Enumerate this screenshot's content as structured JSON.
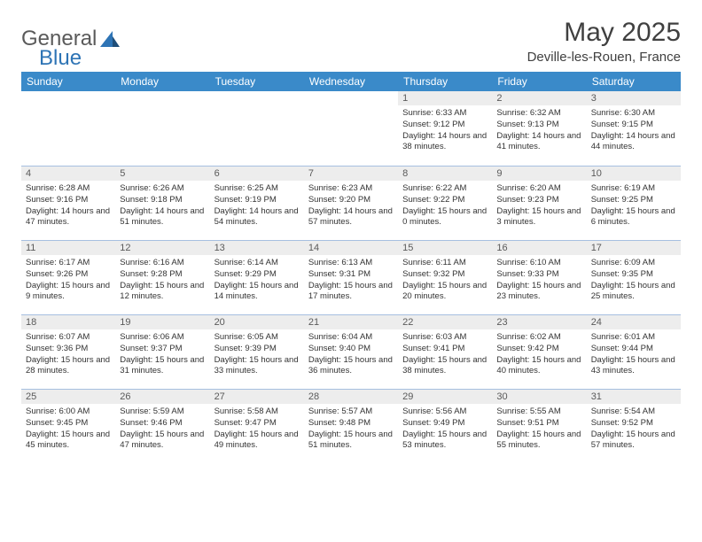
{
  "logo": {
    "general": "General",
    "blue": "Blue"
  },
  "title": "May 2025",
  "location": "Deville-les-Rouen, France",
  "colors": {
    "header_bg": "#3a8ac9",
    "header_text": "#ffffff",
    "daynum_bg": "#ededed",
    "daynum_text": "#5a5a5a",
    "rule": "#a6bfe0",
    "body_text": "#333333",
    "title_text": "#404040"
  },
  "weekdays": [
    "Sunday",
    "Monday",
    "Tuesday",
    "Wednesday",
    "Thursday",
    "Friday",
    "Saturday"
  ],
  "weeks": [
    [
      null,
      null,
      null,
      null,
      {
        "n": "1",
        "sunrise": "6:33 AM",
        "sunset": "9:12 PM",
        "dl": "14 hours and 38 minutes."
      },
      {
        "n": "2",
        "sunrise": "6:32 AM",
        "sunset": "9:13 PM",
        "dl": "14 hours and 41 minutes."
      },
      {
        "n": "3",
        "sunrise": "6:30 AM",
        "sunset": "9:15 PM",
        "dl": "14 hours and 44 minutes."
      }
    ],
    [
      {
        "n": "4",
        "sunrise": "6:28 AM",
        "sunset": "9:16 PM",
        "dl": "14 hours and 47 minutes."
      },
      {
        "n": "5",
        "sunrise": "6:26 AM",
        "sunset": "9:18 PM",
        "dl": "14 hours and 51 minutes."
      },
      {
        "n": "6",
        "sunrise": "6:25 AM",
        "sunset": "9:19 PM",
        "dl": "14 hours and 54 minutes."
      },
      {
        "n": "7",
        "sunrise": "6:23 AM",
        "sunset": "9:20 PM",
        "dl": "14 hours and 57 minutes."
      },
      {
        "n": "8",
        "sunrise": "6:22 AM",
        "sunset": "9:22 PM",
        "dl": "15 hours and 0 minutes."
      },
      {
        "n": "9",
        "sunrise": "6:20 AM",
        "sunset": "9:23 PM",
        "dl": "15 hours and 3 minutes."
      },
      {
        "n": "10",
        "sunrise": "6:19 AM",
        "sunset": "9:25 PM",
        "dl": "15 hours and 6 minutes."
      }
    ],
    [
      {
        "n": "11",
        "sunrise": "6:17 AM",
        "sunset": "9:26 PM",
        "dl": "15 hours and 9 minutes."
      },
      {
        "n": "12",
        "sunrise": "6:16 AM",
        "sunset": "9:28 PM",
        "dl": "15 hours and 12 minutes."
      },
      {
        "n": "13",
        "sunrise": "6:14 AM",
        "sunset": "9:29 PM",
        "dl": "15 hours and 14 minutes."
      },
      {
        "n": "14",
        "sunrise": "6:13 AM",
        "sunset": "9:31 PM",
        "dl": "15 hours and 17 minutes."
      },
      {
        "n": "15",
        "sunrise": "6:11 AM",
        "sunset": "9:32 PM",
        "dl": "15 hours and 20 minutes."
      },
      {
        "n": "16",
        "sunrise": "6:10 AM",
        "sunset": "9:33 PM",
        "dl": "15 hours and 23 minutes."
      },
      {
        "n": "17",
        "sunrise": "6:09 AM",
        "sunset": "9:35 PM",
        "dl": "15 hours and 25 minutes."
      }
    ],
    [
      {
        "n": "18",
        "sunrise": "6:07 AM",
        "sunset": "9:36 PM",
        "dl": "15 hours and 28 minutes."
      },
      {
        "n": "19",
        "sunrise": "6:06 AM",
        "sunset": "9:37 PM",
        "dl": "15 hours and 31 minutes."
      },
      {
        "n": "20",
        "sunrise": "6:05 AM",
        "sunset": "9:39 PM",
        "dl": "15 hours and 33 minutes."
      },
      {
        "n": "21",
        "sunrise": "6:04 AM",
        "sunset": "9:40 PM",
        "dl": "15 hours and 36 minutes."
      },
      {
        "n": "22",
        "sunrise": "6:03 AM",
        "sunset": "9:41 PM",
        "dl": "15 hours and 38 minutes."
      },
      {
        "n": "23",
        "sunrise": "6:02 AM",
        "sunset": "9:42 PM",
        "dl": "15 hours and 40 minutes."
      },
      {
        "n": "24",
        "sunrise": "6:01 AM",
        "sunset": "9:44 PM",
        "dl": "15 hours and 43 minutes."
      }
    ],
    [
      {
        "n": "25",
        "sunrise": "6:00 AM",
        "sunset": "9:45 PM",
        "dl": "15 hours and 45 minutes."
      },
      {
        "n": "26",
        "sunrise": "5:59 AM",
        "sunset": "9:46 PM",
        "dl": "15 hours and 47 minutes."
      },
      {
        "n": "27",
        "sunrise": "5:58 AM",
        "sunset": "9:47 PM",
        "dl": "15 hours and 49 minutes."
      },
      {
        "n": "28",
        "sunrise": "5:57 AM",
        "sunset": "9:48 PM",
        "dl": "15 hours and 51 minutes."
      },
      {
        "n": "29",
        "sunrise": "5:56 AM",
        "sunset": "9:49 PM",
        "dl": "15 hours and 53 minutes."
      },
      {
        "n": "30",
        "sunrise": "5:55 AM",
        "sunset": "9:51 PM",
        "dl": "15 hours and 55 minutes."
      },
      {
        "n": "31",
        "sunrise": "5:54 AM",
        "sunset": "9:52 PM",
        "dl": "15 hours and 57 minutes."
      }
    ]
  ],
  "labels": {
    "sunrise": "Sunrise:",
    "sunset": "Sunset:",
    "daylight": "Daylight:"
  }
}
